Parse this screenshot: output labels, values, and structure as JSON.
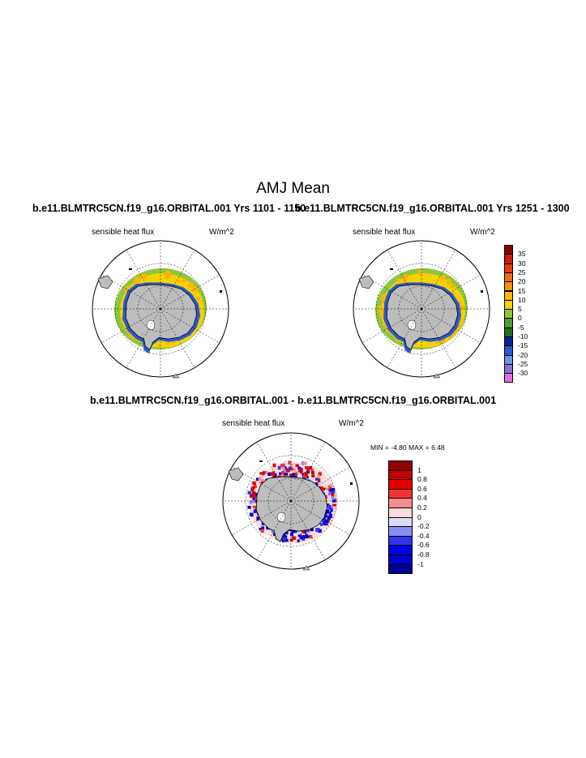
{
  "title": "AMJ Mean",
  "panels": [
    {
      "case_title": "b.e11.BLMTRC5CN.f19_g16.ORBITAL.001  Yrs 1101 - 1150",
      "variable": "sensible heat flux",
      "units": "W/m^2"
    },
    {
      "case_title": "b.e11.BLMTRC5CN.f19_g16.ORBITAL.001  Yrs 1251 - 1300",
      "variable": "sensible heat flux",
      "units": "W/m^2"
    }
  ],
  "difference_panel": {
    "title": "b.e11.BLMTRC5CN.f19_g16.ORBITAL.001 - b.e11.BLMTRC5CN.f19_g16.ORBITAL.001",
    "variable": "sensible heat flux",
    "units": "W/m^2",
    "min_max_text": "MIN =  -4.80 MAX =   6.48"
  },
  "colorbar_mean": {
    "labels": [
      "35",
      "30",
      "25",
      "20",
      "15",
      "10",
      "5",
      "0",
      "-5",
      "-10",
      "-15",
      "-20",
      "-25",
      "-30"
    ],
    "colors": [
      "#8b0000",
      "#c81e0a",
      "#e83c0a",
      "#f56a0a",
      "#f9900a",
      "#fbb40a",
      "#f7d200",
      "#8cc63f",
      "#4e9a2c",
      "#1e6e1e",
      "#0a1e96",
      "#2a5ad2",
      "#6e96e6",
      "#8a6ed2",
      "#e36ee3"
    ]
  },
  "colorbar_diff": {
    "labels": [
      "1",
      "0.8",
      "0.6",
      "0.4",
      "0.2",
      "0",
      "-0.2",
      "-0.4",
      "-0.6",
      "-0.8",
      "-1"
    ],
    "colors": [
      "#960000",
      "#c80000",
      "#e60000",
      "#f03232",
      "#f58c8c",
      "#fadcdc",
      "#dcdcfa",
      "#8c8cf5",
      "#3232f0",
      "#0000e6",
      "#0000c8",
      "#000096"
    ]
  }
}
